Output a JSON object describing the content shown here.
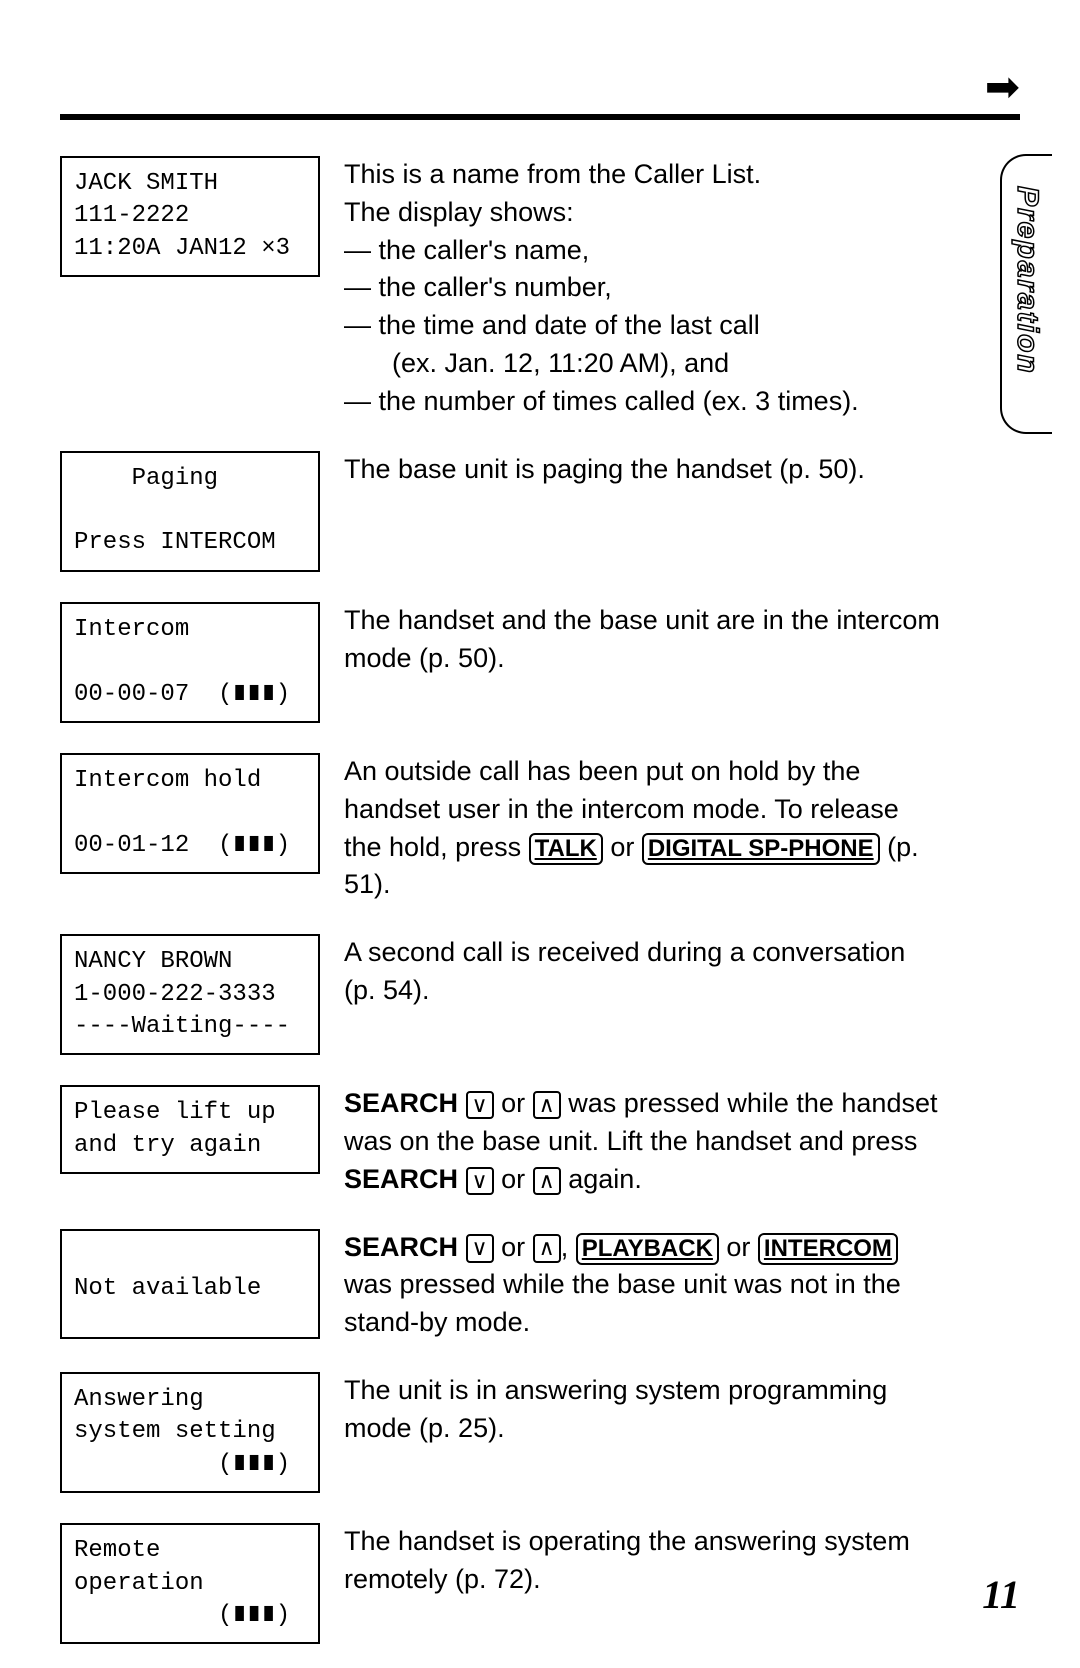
{
  "page_number": "11",
  "side_tab_label": "Preparation",
  "rows": [
    {
      "display_lines": [
        "JACK SMITH",
        "111-2222",
        "11:20A JAN12 ×3"
      ],
      "desc_segments": [
        {
          "t": "text",
          "v": "This is a name from the Caller List."
        },
        {
          "t": "br"
        },
        {
          "t": "text",
          "v": "The display shows:"
        },
        {
          "t": "br"
        },
        {
          "t": "dash",
          "v": "— the caller's name,"
        },
        {
          "t": "dash",
          "v": "— the caller's number,"
        },
        {
          "t": "dash",
          "v": "— the time and date of the last call"
        },
        {
          "t": "dash_indent",
          "v": "(ex. Jan. 12, 11:20 AM), and"
        },
        {
          "t": "dash",
          "v": "— the number of times called (ex. 3 times)."
        }
      ],
      "box_class": "three-line"
    },
    {
      "display_lines": [
        "    Paging",
        "",
        "Press INTERCOM"
      ],
      "desc_segments": [
        {
          "t": "text",
          "v": "The base unit is paging the handset (p. 50)."
        }
      ],
      "box_class": "three-line"
    },
    {
      "display_lines": [
        "Intercom",
        "",
        "00-00-07  (∎∎∎)"
      ],
      "desc_segments": [
        {
          "t": "text",
          "v": "The handset and the base unit are in the intercom mode (p. 50)."
        }
      ],
      "box_class": "three-line"
    },
    {
      "display_lines": [
        "Intercom hold",
        "",
        "00-01-12  (∎∎∎)"
      ],
      "desc_segments": [
        {
          "t": "text",
          "v": "An outside call has been put on hold by the handset user in the intercom mode. To release the hold, press "
        },
        {
          "t": "btn",
          "v": "TALK"
        },
        {
          "t": "text",
          "v": " or "
        },
        {
          "t": "btn",
          "v": "DIGITAL SP-PHONE"
        },
        {
          "t": "text",
          "v": " (p. 51)."
        }
      ],
      "box_class": "three-line"
    },
    {
      "display_lines": [
        "NANCY BROWN",
        "1-000-222-3333",
        "----Waiting----"
      ],
      "desc_segments": [
        {
          "t": "text",
          "v": "A second call is received during a conversation (p. 54)."
        }
      ],
      "box_class": "three-line"
    },
    {
      "display_lines": [
        "Please lift up",
        "and try again"
      ],
      "desc_segments": [
        {
          "t": "bold",
          "v": "SEARCH "
        },
        {
          "t": "icon",
          "v": "∨"
        },
        {
          "t": "text",
          "v": " or "
        },
        {
          "t": "icon",
          "v": "∧"
        },
        {
          "t": "text",
          "v": " was pressed while the handset was on the base unit. Lift the handset and press "
        },
        {
          "t": "bold",
          "v": "SEARCH "
        },
        {
          "t": "icon",
          "v": "∨"
        },
        {
          "t": "text",
          "v": " or "
        },
        {
          "t": "icon",
          "v": "∧"
        },
        {
          "t": "text",
          "v": " again."
        }
      ],
      "box_class": "two-line"
    },
    {
      "display_lines": [
        "",
        "Not available",
        ""
      ],
      "desc_segments": [
        {
          "t": "bold",
          "v": "SEARCH "
        },
        {
          "t": "icon",
          "v": "∨"
        },
        {
          "t": "text",
          "v": " or "
        },
        {
          "t": "icon",
          "v": "∧"
        },
        {
          "t": "text",
          "v": ", "
        },
        {
          "t": "btn",
          "v": "PLAYBACK"
        },
        {
          "t": "text",
          "v": " or "
        },
        {
          "t": "btn",
          "v": "INTERCOM"
        },
        {
          "t": "text",
          "v": " was pressed while the base unit was not in the stand-by mode."
        }
      ],
      "box_class": "three-line"
    },
    {
      "display_lines": [
        "Answering",
        "system setting",
        "          (∎∎∎)"
      ],
      "desc_segments": [
        {
          "t": "text",
          "v": "The unit is in answering system programming mode (p. 25)."
        }
      ],
      "box_class": "three-line"
    },
    {
      "display_lines": [
        "Remote",
        "operation",
        "          (∎∎∎)"
      ],
      "desc_segments": [
        {
          "t": "text",
          "v": "The handset is operating the answering system remotely (p. 72)."
        }
      ],
      "box_class": "three-line"
    }
  ]
}
